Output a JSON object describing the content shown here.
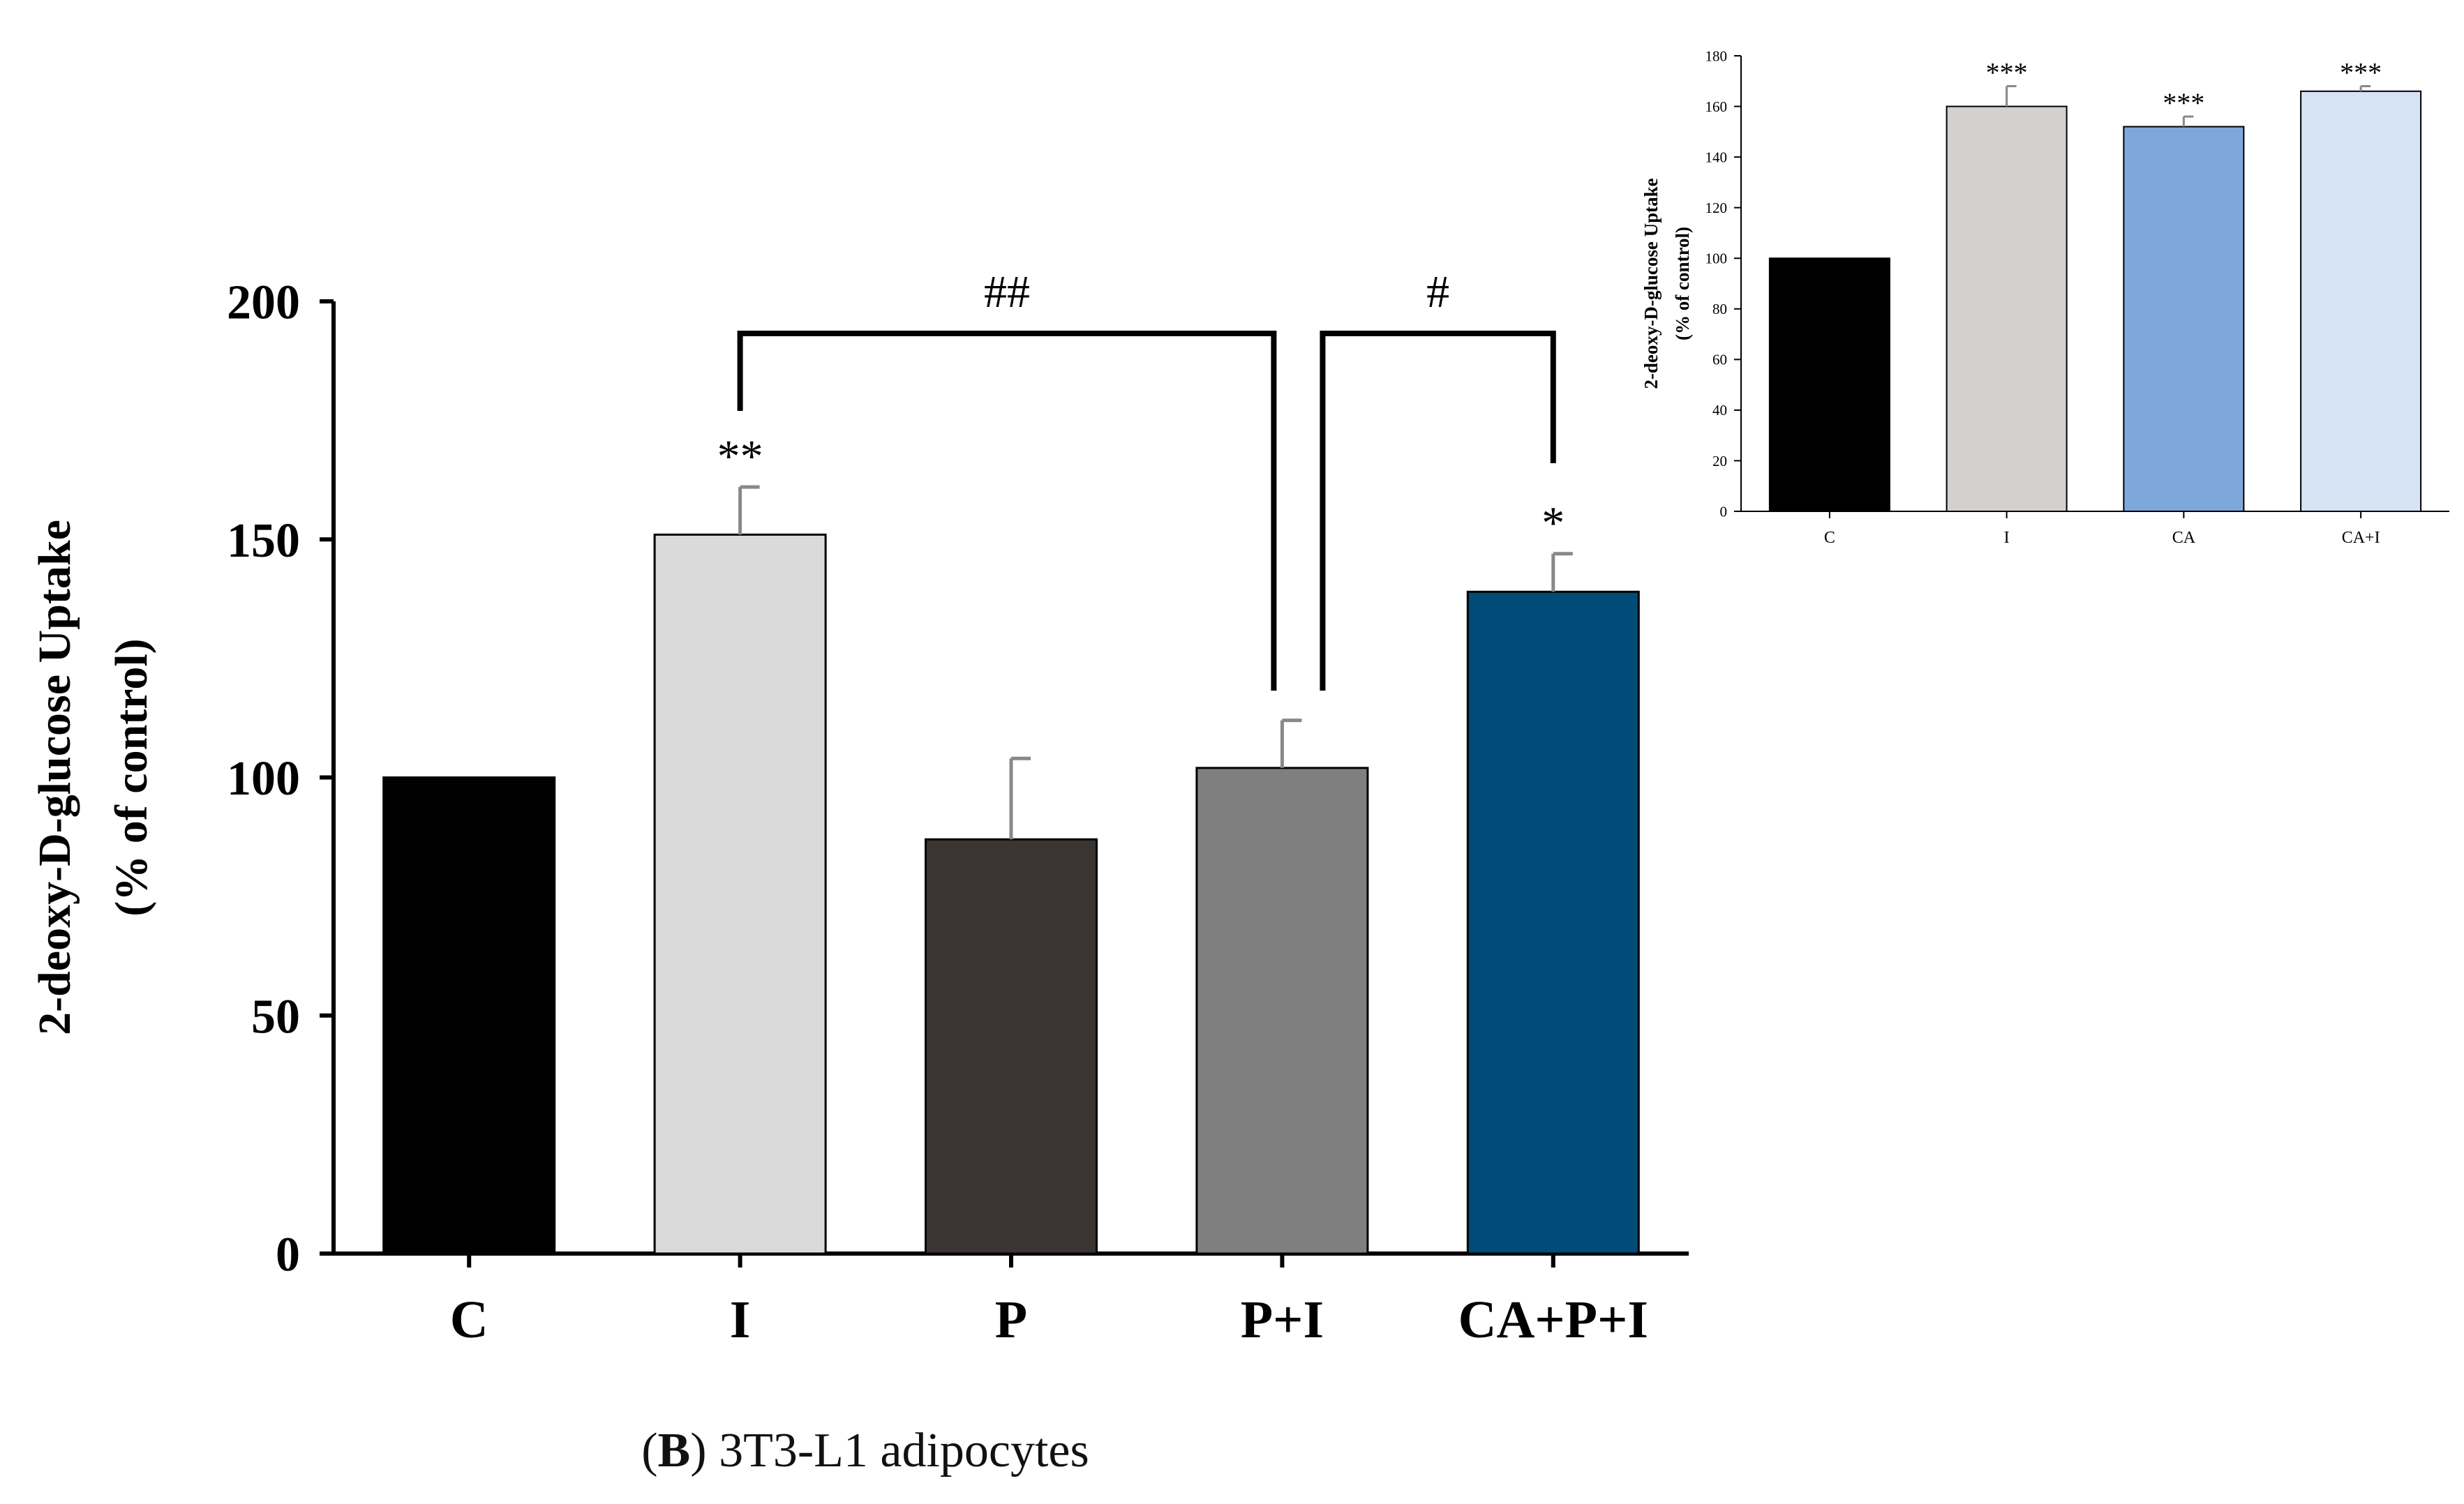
{
  "chart_data": [
    {
      "type": "bar",
      "categories": [
        "C",
        "I",
        "P",
        "P+I",
        "CA+P+I"
      ],
      "values": [
        100,
        151,
        87,
        102,
        139
      ],
      "errors": [
        0,
        10,
        17,
        10,
        8
      ],
      "colors": [
        "#000000",
        "#dadada",
        "#3a3532",
        "#7f7f7f",
        "#004b78"
      ],
      "significance": [
        "",
        "**",
        "",
        "",
        "*"
      ],
      "ylabel_line1": "2-deoxy-D-glucose Uptake",
      "ylabel_line2": "(% of control)",
      "xlabel": "",
      "ylim": [
        0,
        200
      ],
      "yticks": [
        0,
        50,
        100,
        150,
        200
      ],
      "brackets": [
        {
          "from": 1,
          "to": 3,
          "label": "##"
        },
        {
          "from": 3,
          "to": 4,
          "label": "#"
        }
      ]
    },
    {
      "type": "bar",
      "categories": [
        "C",
        "I",
        "CA",
        "CA+I"
      ],
      "values": [
        100,
        160,
        152,
        166
      ],
      "errors": [
        0,
        8,
        4,
        2
      ],
      "colors": [
        "#000000",
        "#d4d0d0",
        "#7ea8dc",
        "#d6e3f4"
      ],
      "significance": [
        "",
        "***",
        "***",
        "***"
      ],
      "ylabel_line1": "2-deoxy-D-glucose Uptake",
      "ylabel_line2": "(% of control)",
      "xlabel": "",
      "ylim": [
        0,
        180
      ],
      "yticks": [
        0,
        20,
        40,
        60,
        80,
        100,
        120,
        140,
        160,
        180
      ]
    }
  ],
  "caption": {
    "panel": "B",
    "text": "3T3-L1 adipocytes"
  }
}
